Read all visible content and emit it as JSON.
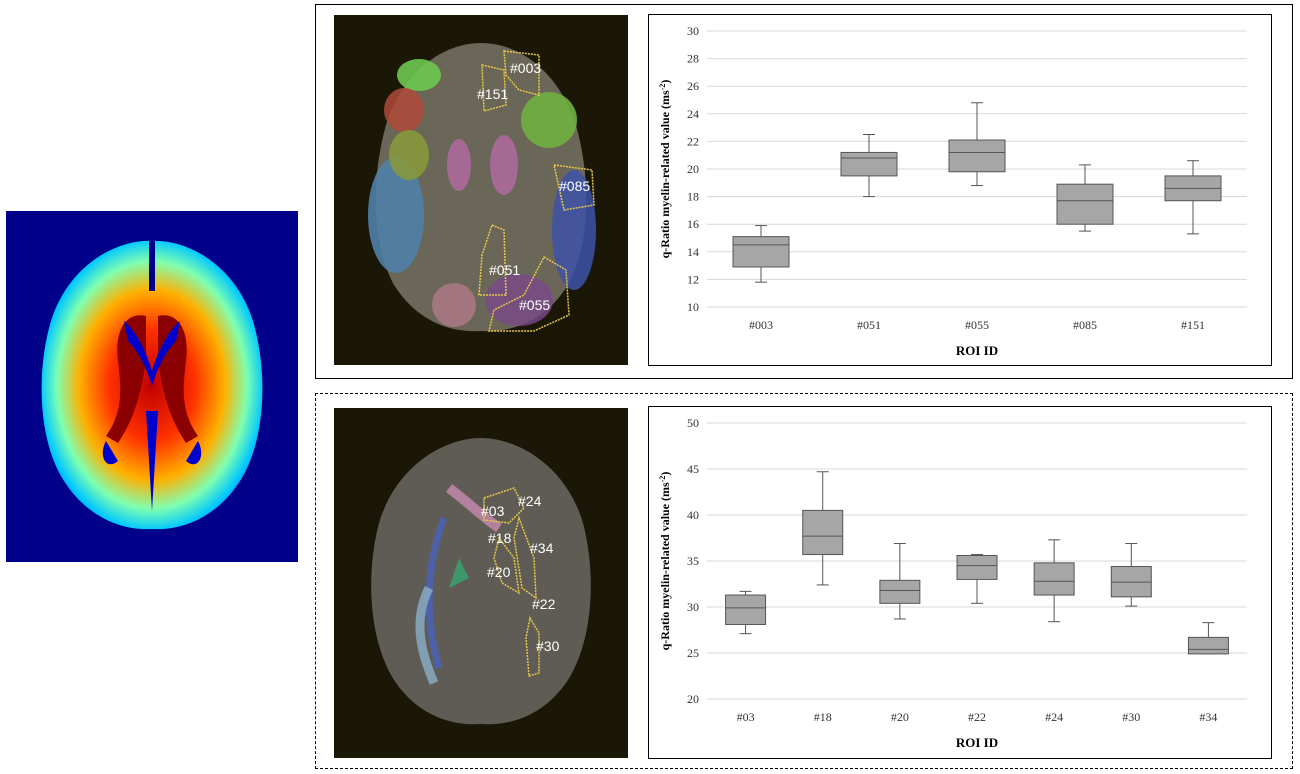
{
  "chart_data": [
    {
      "type": "box",
      "xlabel": "ROI ID",
      "ylabel_text": "q-Ratio myelin-related value (ms",
      "ylabel_sup": "-2",
      "ylabel_close": ")",
      "ylim": [
        10,
        30
      ],
      "yticks": [
        10,
        12,
        14,
        16,
        18,
        20,
        22,
        24,
        26,
        28,
        30
      ],
      "grid": true,
      "categories": [
        "#003",
        "#051",
        "#055",
        "#085",
        "#151"
      ],
      "boxes": [
        {
          "min": 11.8,
          "q1": 12.9,
          "median": 14.5,
          "q3": 15.1,
          "max": 15.9
        },
        {
          "min": 18.0,
          "q1": 19.5,
          "median": 20.8,
          "q3": 21.2,
          "max": 22.5
        },
        {
          "min": 18.8,
          "q1": 19.8,
          "median": 21.2,
          "q3": 22.1,
          "max": 24.8
        },
        {
          "min": 15.5,
          "q1": 16.0,
          "median": 17.7,
          "q3": 18.9,
          "max": 20.3
        },
        {
          "min": 15.3,
          "q1": 17.7,
          "median": 18.6,
          "q3": 19.5,
          "max": 20.6
        }
      ],
      "box_color": "#a6a6a6"
    },
    {
      "type": "box",
      "xlabel": "ROI ID",
      "ylabel_text": "q-Ratio myelin-related value (ms",
      "ylabel_sup": "-2",
      "ylabel_close": ")",
      "ylim": [
        20,
        50
      ],
      "yticks": [
        20,
        25,
        30,
        35,
        40,
        45,
        50
      ],
      "grid": true,
      "categories": [
        "#03",
        "#18",
        "#20",
        "#22",
        "#24",
        "#30",
        "#34"
      ],
      "boxes": [
        {
          "min": 27.1,
          "q1": 28.1,
          "median": 29.9,
          "q3": 31.3,
          "max": 31.7
        },
        {
          "min": 32.4,
          "q1": 35.7,
          "median": 37.7,
          "q3": 40.5,
          "max": 44.7
        },
        {
          "min": 28.7,
          "q1": 30.4,
          "median": 31.8,
          "q3": 32.9,
          "max": 36.9
        },
        {
          "min": 30.4,
          "q1": 33.0,
          "median": 34.5,
          "q3": 35.6,
          "max": 35.7
        },
        {
          "min": 28.4,
          "q1": 31.3,
          "median": 32.8,
          "q3": 34.8,
          "max": 37.3
        },
        {
          "min": 30.1,
          "q1": 31.1,
          "median": 32.7,
          "q3": 34.4,
          "max": 36.9
        },
        {
          "min": 24.9,
          "q1": 24.9,
          "median": 25.4,
          "q3": 26.7,
          "max": 28.3
        }
      ],
      "box_color": "#a6a6a6"
    }
  ],
  "atlas_top": {
    "labels": [
      "#003",
      "#151",
      "#085",
      "#051",
      "#055"
    ]
  },
  "atlas_bottom": {
    "labels": [
      "#03",
      "#24",
      "#18",
      "#34",
      "#20",
      "#22",
      "#30"
    ]
  },
  "colors": {
    "heatmap_background": "#00008b",
    "atlas_background": "#1a1707",
    "roi_outline": "#e6c84a"
  }
}
